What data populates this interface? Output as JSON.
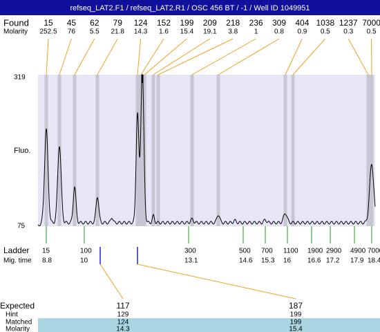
{
  "title": "refseq_LAT2.F1 / refseq_LAT2.R1 / OSC 456 BT / -1 / Well ID 1049951",
  "found": {
    "label": "Found",
    "molarity_label": "Molarity",
    "sizes": [
      15,
      45,
      62,
      79,
      124,
      152,
      199,
      209,
      218,
      236,
      309,
      404,
      1038,
      1237,
      7000
    ],
    "molarity": [
      252.5,
      76,
      5.5,
      21.8,
      14.3,
      1.6,
      15.4,
      19.1,
      3.8,
      1,
      0.8,
      0.9,
      0.5,
      0.3,
      0.5
    ]
  },
  "axis": {
    "label": "Fluo.",
    "top": "319",
    "bottom": "75"
  },
  "ladder": {
    "label": "Ladder",
    "time_label": "Mig. time",
    "sizes": [
      15,
      100,
      300,
      500,
      700,
      1100,
      1900,
      2900,
      4900,
      7000
    ],
    "times": [
      8.8,
      10,
      13.1,
      14.6,
      15.3,
      16,
      16.6,
      17.2,
      17.9,
      18.4
    ]
  },
  "expected": {
    "row_labels": [
      "Expected",
      "Hint",
      "Matched",
      "Molarity"
    ],
    "columns": [
      {
        "expected": 117,
        "hint": 129,
        "matched": 124,
        "molarity": 14.3
      },
      {
        "expected": 187,
        "hint": 199,
        "matched": 199,
        "molarity": 15.4
      }
    ]
  }
}
